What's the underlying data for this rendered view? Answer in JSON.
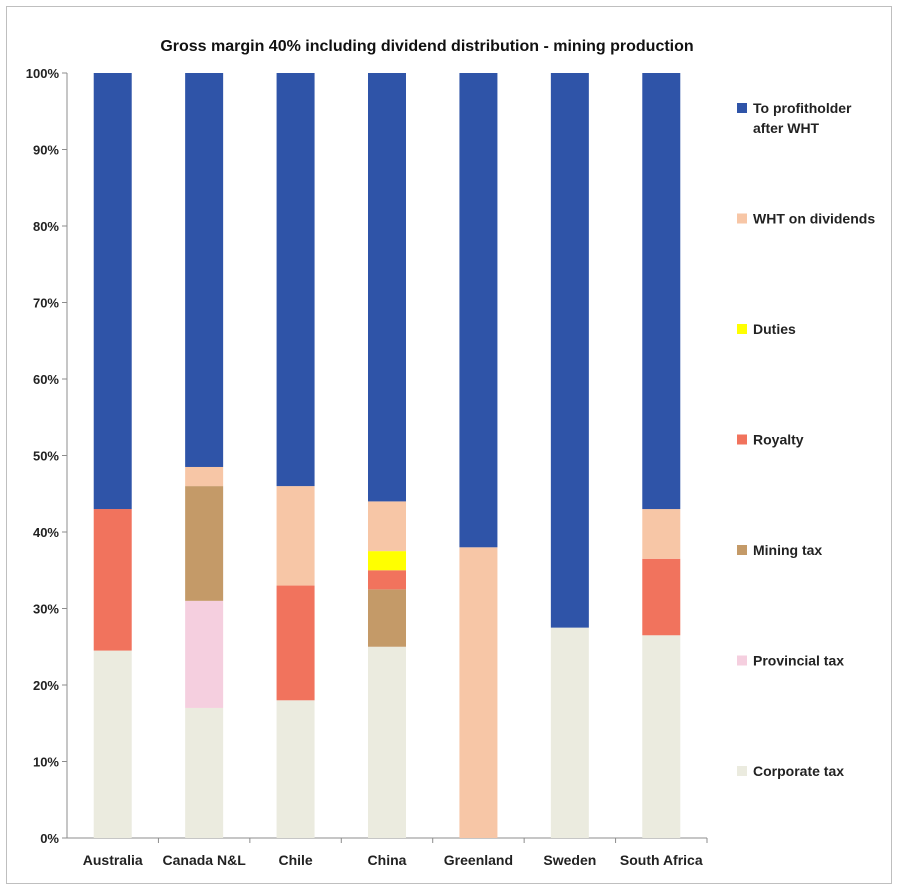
{
  "chart_data": {
    "type": "bar",
    "stacked": true,
    "title": "Gross margin 40% including dividend distribution - mining production",
    "xlabel": "",
    "ylabel": "",
    "ylim": [
      0,
      100
    ],
    "y_ticks": [
      "0%",
      "10%",
      "20%",
      "30%",
      "40%",
      "50%",
      "60%",
      "70%",
      "80%",
      "90%",
      "100%"
    ],
    "categories": [
      "Australia",
      "Canada N&L",
      "Chile",
      "China",
      "Greenland",
      "Sweden",
      "South Africa"
    ],
    "series": [
      {
        "name": "Corporate tax",
        "color": "#ebebdf",
        "values": [
          24.5,
          17,
          18,
          25,
          0,
          27.5,
          26.5
        ]
      },
      {
        "name": "Provincial tax",
        "color": "#f5cfdf",
        "values": [
          0,
          14,
          0,
          0,
          0,
          0,
          0
        ]
      },
      {
        "name": "Mining tax",
        "color": "#c49a68",
        "values": [
          0,
          15,
          0,
          7.5,
          0,
          0,
          0
        ]
      },
      {
        "name": "Royalty",
        "color": "#f1735d",
        "values": [
          18.5,
          0,
          15,
          2.5,
          0,
          0,
          10
        ]
      },
      {
        "name": "Duties",
        "color": "#ffff00",
        "values": [
          0,
          0,
          0,
          2.5,
          0,
          0,
          0
        ]
      },
      {
        "name": "WHT on dividends",
        "color": "#f7c6a6",
        "values": [
          0,
          2.5,
          13,
          6.5,
          38,
          0,
          6.5
        ]
      },
      {
        "name": "To profitholder after WHT",
        "color": "#2f54a8",
        "values": [
          57,
          51.5,
          54,
          56,
          62,
          72.5,
          57
        ]
      }
    ],
    "legend_position": "right",
    "legend_order": [
      "To profitholder after WHT",
      "WHT on dividends",
      "Duties",
      "Royalty",
      "Mining tax",
      "Provincial tax",
      "Corporate tax"
    ],
    "grid": false
  }
}
